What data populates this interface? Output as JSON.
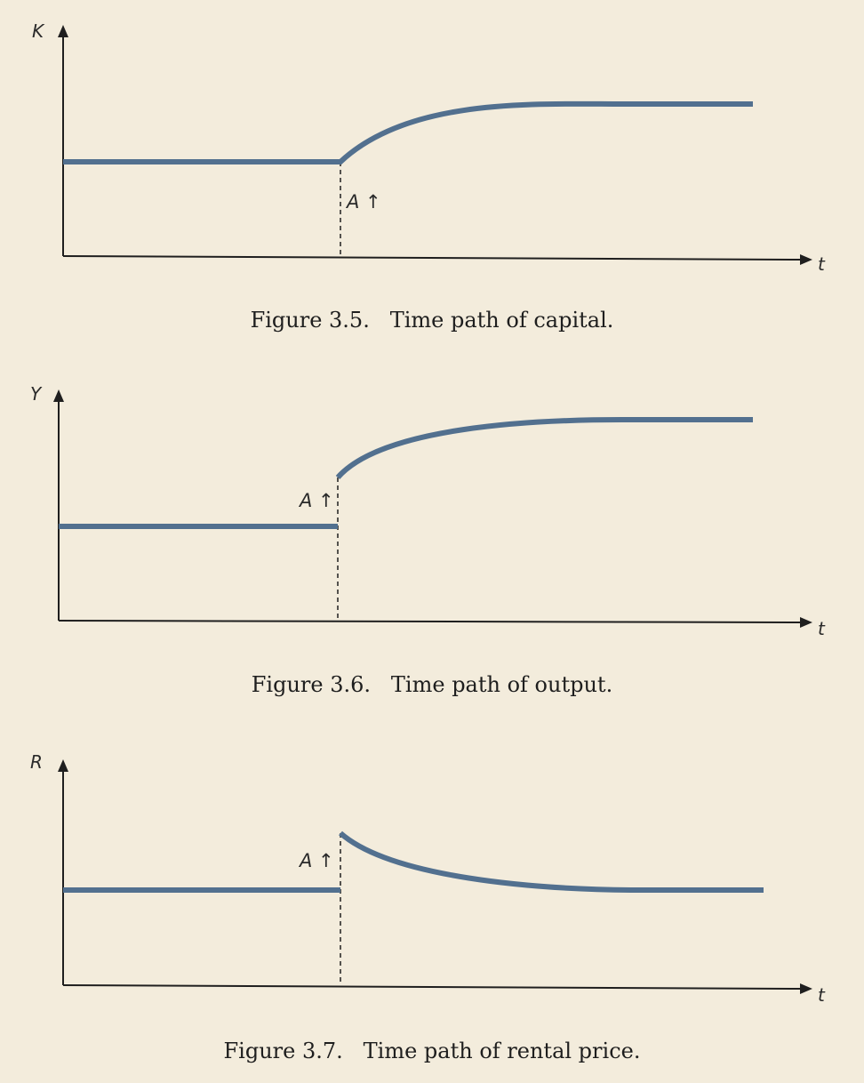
{
  "figures": [
    {
      "id": "capital",
      "y_axis_label": "K",
      "x_axis_label": "t",
      "shock_label": "A ↑",
      "caption": "Figure 3.5.   Time path of capital.",
      "path_shape": "rise-gradually"
    },
    {
      "id": "output",
      "y_axis_label": "Y",
      "x_axis_label": "t",
      "shock_label": "A ↑",
      "caption": "Figure 3.6.   Time path of output.",
      "path_shape": "jump-then-rise"
    },
    {
      "id": "rental-price",
      "y_axis_label": "R",
      "x_axis_label": "t",
      "shock_label": "A ↑",
      "caption": "Figure 3.7.   Time path of rental price.",
      "path_shape": "jump-then-fall"
    }
  ],
  "colors": {
    "background": "#f3ecdc",
    "plot_area": "#f3ecdc",
    "curve": "#52708f",
    "axis": "#1f1f1f"
  }
}
